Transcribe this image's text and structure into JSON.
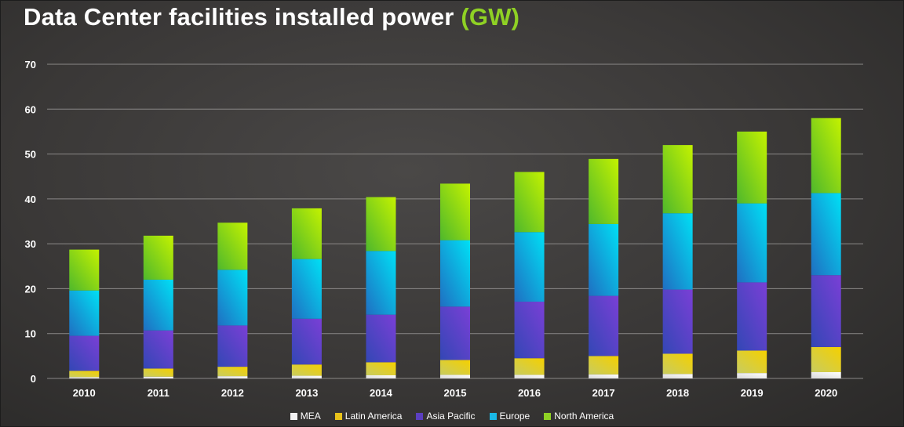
{
  "title": {
    "main": "Data Center facilities installed power",
    "unit": "(GW)"
  },
  "colors": {
    "MEA": "#f2f2f2",
    "Latin America": "#e8c21a",
    "Asia Pacific": "#5b3fc0",
    "Europe": "#1ab8e6",
    "North America": "#8fd124",
    "title_unit": "#8fd124"
  },
  "chart_data": {
    "type": "bar",
    "stacked": true,
    "title": "Data Center facilities installed power (GW)",
    "xlabel": "",
    "ylabel": "",
    "ylim": [
      0,
      70
    ],
    "yticks": [
      0,
      10,
      20,
      30,
      40,
      50,
      60,
      70
    ],
    "grid": true,
    "legend_position": "bottom",
    "categories": [
      "2010",
      "2011",
      "2012",
      "2013",
      "2014",
      "2015",
      "2016",
      "2017",
      "2018",
      "2019",
      "2020"
    ],
    "series": [
      {
        "name": "MEA",
        "values": [
          0.3,
          0.4,
          0.5,
          0.6,
          0.7,
          0.8,
          0.8,
          0.9,
          1.0,
          1.2,
          1.4
        ]
      },
      {
        "name": "Latin America",
        "values": [
          1.4,
          1.8,
          2.1,
          2.5,
          2.9,
          3.3,
          3.7,
          4.1,
          4.5,
          5.0,
          5.6
        ]
      },
      {
        "name": "Asia Pacific",
        "values": [
          7.8,
          8.5,
          9.2,
          10.2,
          10.6,
          11.9,
          12.6,
          13.4,
          14.3,
          15.2,
          16.0
        ]
      },
      {
        "name": "Europe",
        "values": [
          10.1,
          11.3,
          12.4,
          13.3,
          14.2,
          14.8,
          15.5,
          16.0,
          17.0,
          17.6,
          18.3
        ]
      },
      {
        "name": "North America",
        "values": [
          9.1,
          9.8,
          10.5,
          11.3,
          12.0,
          12.6,
          13.4,
          14.5,
          15.2,
          16.0,
          16.7
        ]
      }
    ]
  }
}
